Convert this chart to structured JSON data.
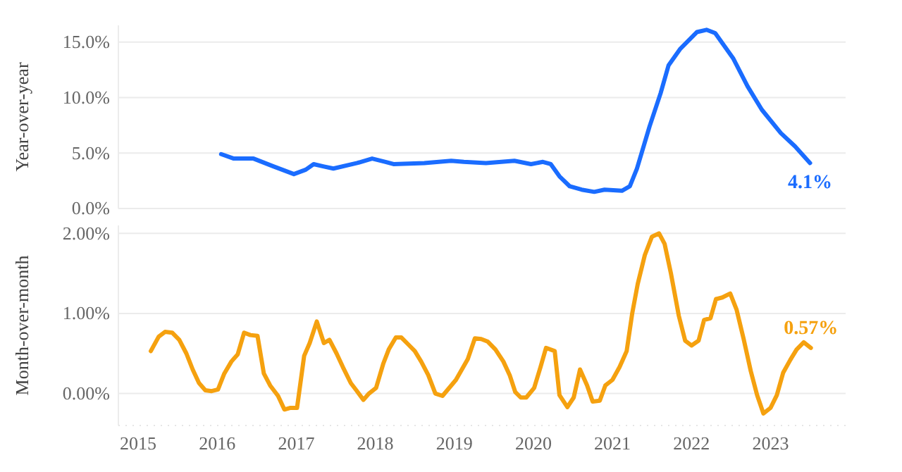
{
  "chart_data": [
    {
      "type": "line",
      "ylabel": "Year-over-year",
      "xlim": [
        2014.75,
        2023.95
      ],
      "xticks": [
        2015,
        2016,
        2017,
        2018,
        2019,
        2020,
        2021,
        2022,
        2023
      ],
      "ylim": [
        0,
        16.5
      ],
      "yticks": [
        {
          "value": 0,
          "label": "0.0%"
        },
        {
          "value": 5,
          "label": "5.0%"
        },
        {
          "value": 10,
          "label": "10.0%"
        },
        {
          "value": 15,
          "label": "15.0%"
        }
      ],
      "tick_labels": "y",
      "grid": "y",
      "annotations": [
        {
          "text": "4.1%",
          "x": 2023.5,
          "y": 4.1
        }
      ],
      "series": [
        {
          "color": "#1a6cff",
          "x": [
            2016.05,
            2016.21,
            2016.46,
            2016.71,
            2016.97,
            2017.12,
            2017.22,
            2017.34,
            2017.47,
            2017.77,
            2017.96,
            2018.13,
            2018.23,
            2018.62,
            2018.96,
            2019.12,
            2019.4,
            2019.76,
            2019.97,
            2020.12,
            2020.22,
            2020.33,
            2020.46,
            2020.61,
            2020.77,
            2020.9,
            2021.12,
            2021.22,
            2021.31,
            2021.47,
            2021.61,
            2021.71,
            2021.86,
            2022.07,
            2022.19,
            2022.3,
            2022.53,
            2022.71,
            2022.89,
            2023.13,
            2023.31,
            2023.5
          ],
          "values": [
            4.9,
            4.5,
            4.5,
            3.8,
            3.1,
            3.5,
            4.0,
            3.8,
            3.6,
            4.1,
            4.5,
            4.2,
            4.0,
            4.1,
            4.3,
            4.2,
            4.1,
            4.3,
            4.0,
            4.2,
            4.0,
            2.9,
            2.0,
            1.7,
            1.5,
            1.7,
            1.6,
            2.0,
            3.6,
            7.4,
            10.4,
            12.9,
            14.4,
            15.9,
            16.1,
            15.8,
            13.5,
            11.0,
            8.9,
            6.8,
            5.6,
            4.1
          ]
        }
      ]
    },
    {
      "type": "line",
      "ylabel": "Month-over-month",
      "xlim": [
        2014.75,
        2023.95
      ],
      "xticks": [
        2015,
        2016,
        2017,
        2018,
        2019,
        2020,
        2021,
        2022,
        2023
      ],
      "ylim": [
        -0.4,
        2.1
      ],
      "yticks": [
        {
          "value": 0,
          "label": "0.00%"
        },
        {
          "value": 1,
          "label": "1.00%"
        },
        {
          "value": 2,
          "label": "2.00%"
        }
      ],
      "grid": "y",
      "annotations": [
        {
          "text": "0.57%",
          "x": 2023.51,
          "y": 0.57
        }
      ],
      "series": [
        {
          "color": "#f5a10f",
          "x": [
            2015.16,
            2015.26,
            2015.34,
            2015.43,
            2015.52,
            2015.61,
            2015.69,
            2015.77,
            2015.85,
            2015.93,
            2016.01,
            2016.09,
            2016.18,
            2016.26,
            2016.34,
            2016.42,
            2016.51,
            2016.59,
            2016.67,
            2016.77,
            2016.85,
            2016.92,
            2017.01,
            2017.1,
            2017.17,
            2017.26,
            2017.35,
            2017.42,
            2017.51,
            2017.59,
            2017.69,
            2017.76,
            2017.85,
            2017.92,
            2018.01,
            2018.1,
            2018.17,
            2018.26,
            2018.33,
            2018.42,
            2018.5,
            2018.58,
            2018.67,
            2018.76,
            2018.85,
            2019.02,
            2019.17,
            2019.26,
            2019.34,
            2019.42,
            2019.52,
            2019.62,
            2019.7,
            2019.77,
            2019.84,
            2019.91,
            2020.01,
            2020.09,
            2020.16,
            2020.27,
            2020.33,
            2020.43,
            2020.51,
            2020.59,
            2020.68,
            2020.75,
            2020.84,
            2020.91,
            2021.0,
            2021.09,
            2021.18,
            2021.25,
            2021.32,
            2021.41,
            2021.5,
            2021.59,
            2021.66,
            2021.74,
            2021.84,
            2021.92,
            2022.0,
            2022.09,
            2022.16,
            2022.24,
            2022.31,
            2022.39,
            2022.49,
            2022.57,
            2022.66,
            2022.75,
            2022.83,
            2022.91,
            2023.0,
            2023.08,
            2023.16,
            2023.25,
            2023.33,
            2023.42,
            2023.51
          ],
          "values": [
            0.53,
            0.71,
            0.77,
            0.76,
            0.67,
            0.5,
            0.3,
            0.13,
            0.04,
            0.03,
            0.05,
            0.25,
            0.4,
            0.49,
            0.76,
            0.73,
            0.72,
            0.25,
            0.1,
            -0.03,
            -0.2,
            -0.18,
            -0.18,
            0.47,
            0.63,
            0.9,
            0.63,
            0.67,
            0.5,
            0.33,
            0.13,
            0.04,
            -0.08,
            0.0,
            0.07,
            0.37,
            0.55,
            0.7,
            0.7,
            0.61,
            0.53,
            0.4,
            0.23,
            0.0,
            -0.03,
            0.17,
            0.43,
            0.69,
            0.68,
            0.65,
            0.55,
            0.4,
            0.23,
            0.02,
            -0.05,
            -0.05,
            0.07,
            0.33,
            0.57,
            0.53,
            -0.02,
            -0.17,
            -0.05,
            0.3,
            0.1,
            -0.1,
            -0.09,
            0.1,
            0.17,
            0.33,
            0.53,
            1.0,
            1.37,
            1.73,
            1.96,
            2.0,
            1.87,
            1.5,
            0.97,
            0.66,
            0.6,
            0.66,
            0.92,
            0.94,
            1.18,
            1.2,
            1.25,
            1.05,
            0.68,
            0.28,
            -0.02,
            -0.25,
            -0.18,
            -0.02,
            0.26,
            0.42,
            0.55,
            0.64,
            0.57
          ]
        }
      ]
    }
  ]
}
